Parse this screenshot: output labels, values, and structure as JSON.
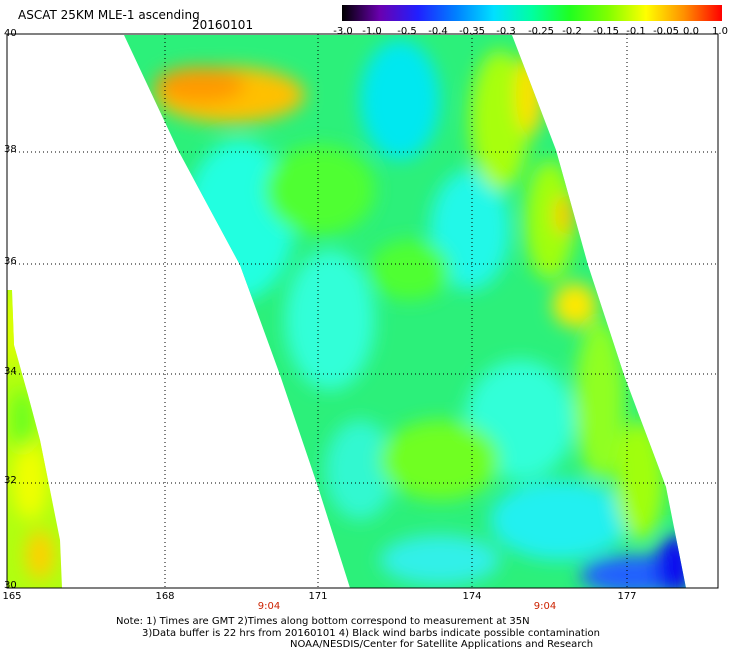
{
  "header": {
    "title": "ASCAT 25KM MLE-1 ascending",
    "date": "20160101"
  },
  "colorbar": {
    "labels": [
      "-3.0",
      "-1.0",
      "-0.5",
      "-0.4",
      "-0.35",
      "-0.3",
      "-0.25",
      "-0.2",
      "-0.15",
      "-0.1",
      "-0.05",
      "0.0",
      "1.0"
    ],
    "colors": [
      "#000000",
      "#8000c0",
      "#3030ff",
      "#0090ff",
      "#00d0ff",
      "#00ffe0",
      "#00ff80",
      "#40ff00",
      "#a0ff00",
      "#ffff00",
      "#ffb000",
      "#ff5000",
      "#ff0000"
    ]
  },
  "map": {
    "lat_labels": [
      "40",
      "38",
      "36",
      "34",
      "32",
      "30"
    ],
    "lon_labels": [
      "165",
      "168",
      "171",
      "174",
      "177"
    ],
    "time_labels": [
      "9:04",
      "9:04"
    ]
  },
  "footer": {
    "note1": "Note: 1) Times are GMT 2)Times along bottom correspond to measurement at 35N",
    "note2": "3)Data buffer is 22 hrs from 20160101 4) Black wind barbs indicate possible contamination",
    "credit": "NOAA/NESDIS/Center for Satellite Applications and Research"
  }
}
